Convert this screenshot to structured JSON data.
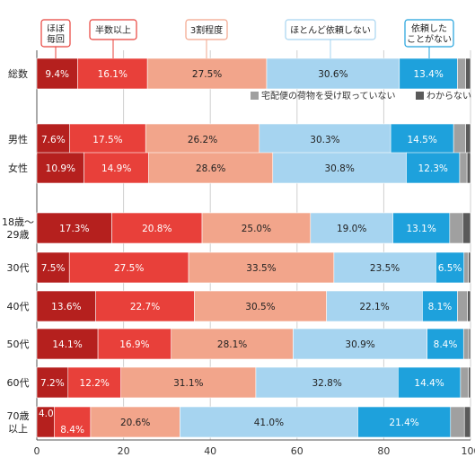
{
  "chart_data": {
    "type": "bar",
    "orientation": "horizontal",
    "stacked": true,
    "xlim": [
      0,
      100
    ],
    "xticks": [
      "0",
      "20",
      "40",
      "60",
      "80",
      "100"
    ],
    "series": [
      {
        "name": "ほぼ毎回",
        "color": "#b5201e"
      },
      {
        "name": "半数以上",
        "color": "#e8403a"
      },
      {
        "name": "3割程度",
        "color": "#f2a58b"
      },
      {
        "name": "ほとんど依頼しない",
        "color": "#a6d4f0"
      },
      {
        "name": "依頼したことがない",
        "color": "#1ea1dc"
      },
      {
        "name": "宅配便の荷物を受け取っていない",
        "color": "#a0a0a0"
      },
      {
        "name": "わからない",
        "color": "#5a5a5a"
      }
    ],
    "legend_top": [
      {
        "text": "ほぼ\n毎回",
        "border": "#e8403a"
      },
      {
        "text": "半数以上",
        "border": "#e8403a"
      },
      {
        "text": "3割程度",
        "border": "#f2a58b"
      },
      {
        "text": "ほとんど依頼しない",
        "border": "#a6d4f0"
      },
      {
        "text": "依頼した\nことがない",
        "border": "#1ea1dc"
      }
    ],
    "legend_note": [
      "宅配便の荷物を受け取っていない",
      "わからない"
    ],
    "rows": [
      {
        "label": "総数",
        "values": [
          9.4,
          16.1,
          27.5,
          30.6,
          13.4,
          1.9,
          1.1
        ],
        "labels": [
          "9.4%",
          "16.1%",
          "27.5%",
          "30.6%",
          "13.4%",
          "",
          ""
        ]
      },
      {
        "label": "男性",
        "values": [
          7.6,
          17.5,
          26.2,
          30.3,
          14.5,
          2.8,
          1.1
        ],
        "labels": [
          "7.6%",
          "17.5%",
          "26.2%",
          "30.3%",
          "14.5%",
          "",
          ""
        ]
      },
      {
        "label": "女性",
        "values": [
          10.9,
          14.9,
          28.6,
          30.8,
          12.3,
          1.7,
          0.8
        ],
        "labels": [
          "10.9%",
          "14.9%",
          "28.6%",
          "30.8%",
          "12.3%",
          "",
          ""
        ]
      },
      {
        "label": "18歳～\n29歳",
        "values": [
          17.3,
          20.8,
          25.0,
          19.0,
          13.1,
          3.0,
          1.8
        ],
        "labels": [
          "17.3%",
          "20.8%",
          "25.0%",
          "19.0%",
          "13.1%",
          "",
          ""
        ]
      },
      {
        "label": "30代",
        "values": [
          7.5,
          27.5,
          33.5,
          23.5,
          6.5,
          1.0,
          0.5
        ],
        "labels": [
          "7.5%",
          "27.5%",
          "33.5%",
          "23.5%",
          "6.5%",
          "",
          ""
        ]
      },
      {
        "label": "40代",
        "values": [
          13.6,
          22.7,
          30.5,
          22.1,
          8.1,
          2.3,
          0.7
        ],
        "labels": [
          "13.6%",
          "22.7%",
          "30.5%",
          "22.1%",
          "8.1%",
          "",
          ""
        ]
      },
      {
        "label": "50代",
        "values": [
          14.1,
          16.9,
          28.1,
          30.9,
          8.4,
          1.2,
          0.4
        ],
        "labels": [
          "14.1%",
          "16.9%",
          "28.1%",
          "30.9%",
          "8.4%",
          "",
          ""
        ]
      },
      {
        "label": "60代",
        "values": [
          7.2,
          12.2,
          31.1,
          32.8,
          14.4,
          1.8,
          0.5
        ],
        "labels": [
          "7.2%",
          "12.2%",
          "31.1%",
          "32.8%",
          "14.4%",
          "",
          ""
        ]
      },
      {
        "label": "70歳\n以上",
        "values": [
          4.0,
          8.4,
          20.6,
          41.0,
          21.4,
          3.2,
          1.4
        ],
        "labels": [
          "4.0%",
          "8.4%",
          "20.6%",
          "41.0%",
          "21.4%",
          "",
          ""
        ]
      }
    ]
  }
}
